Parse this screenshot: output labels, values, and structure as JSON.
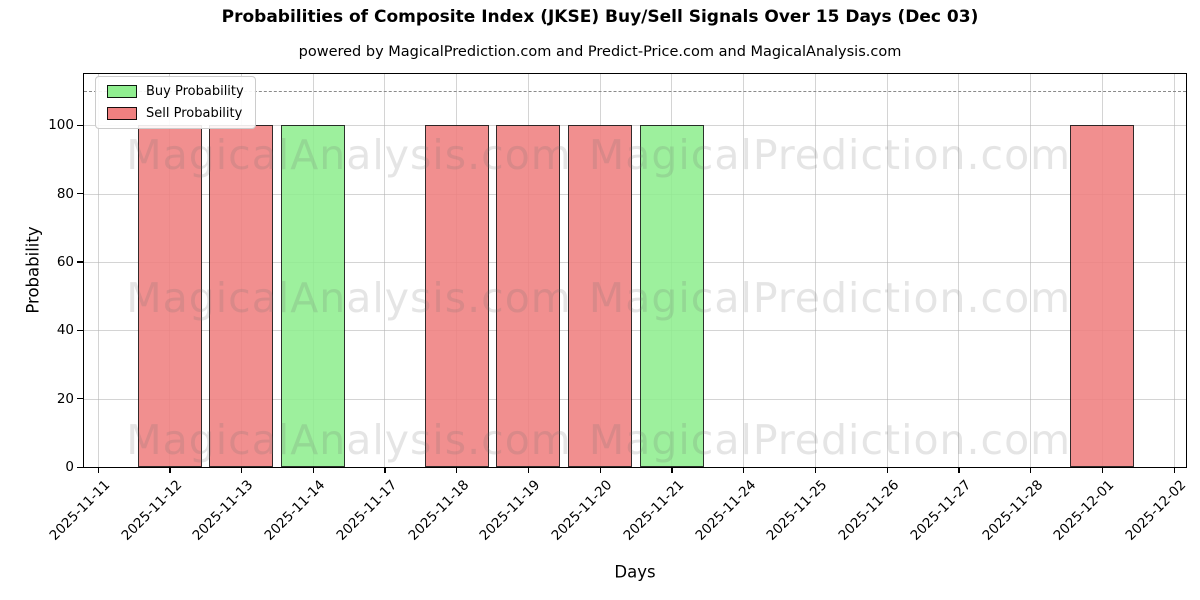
{
  "chart_data": {
    "type": "bar",
    "title": "Probabilities of Composite Index (JKSE) Buy/Sell Signals Over 15 Days (Dec 03)",
    "subtitle": "powered by MagicalPrediction.com and Predict-Price.com and MagicalAnalysis.com",
    "xlabel": "Days",
    "ylabel": "Probability",
    "ylim": [
      0,
      115
    ],
    "yticks": [
      0,
      20,
      40,
      60,
      80,
      100
    ],
    "grid": true,
    "threshold_line": {
      "y": 110,
      "style": "dashed",
      "color": "#8a8a8a"
    },
    "legend_position": "upper-left",
    "categories": [
      "2025-11-11",
      "2025-11-12",
      "2025-11-13",
      "2025-11-14",
      "2025-11-17",
      "2025-11-18",
      "2025-11-19",
      "2025-11-20",
      "2025-11-21",
      "2025-11-24",
      "2025-11-25",
      "2025-11-26",
      "2025-11-27",
      "2025-11-28",
      "2025-12-01",
      "2025-12-02"
    ],
    "series": [
      {
        "name": "Buy Probability",
        "color": "#90ee90",
        "edge_color": "#000000",
        "values": [
          0,
          0,
          0,
          100,
          0,
          0,
          0,
          0,
          100,
          0,
          0,
          0,
          0,
          0,
          0,
          0
        ]
      },
      {
        "name": "Sell Probability",
        "color": "#f08080",
        "edge_color": "#000000",
        "values": [
          0,
          100,
          100,
          0,
          0,
          100,
          100,
          100,
          0,
          0,
          0,
          0,
          0,
          0,
          100,
          0
        ]
      }
    ]
  },
  "watermarks": {
    "left_text": "MagicalAnalysis.com",
    "right_text": "MagicalPrediction.com"
  }
}
